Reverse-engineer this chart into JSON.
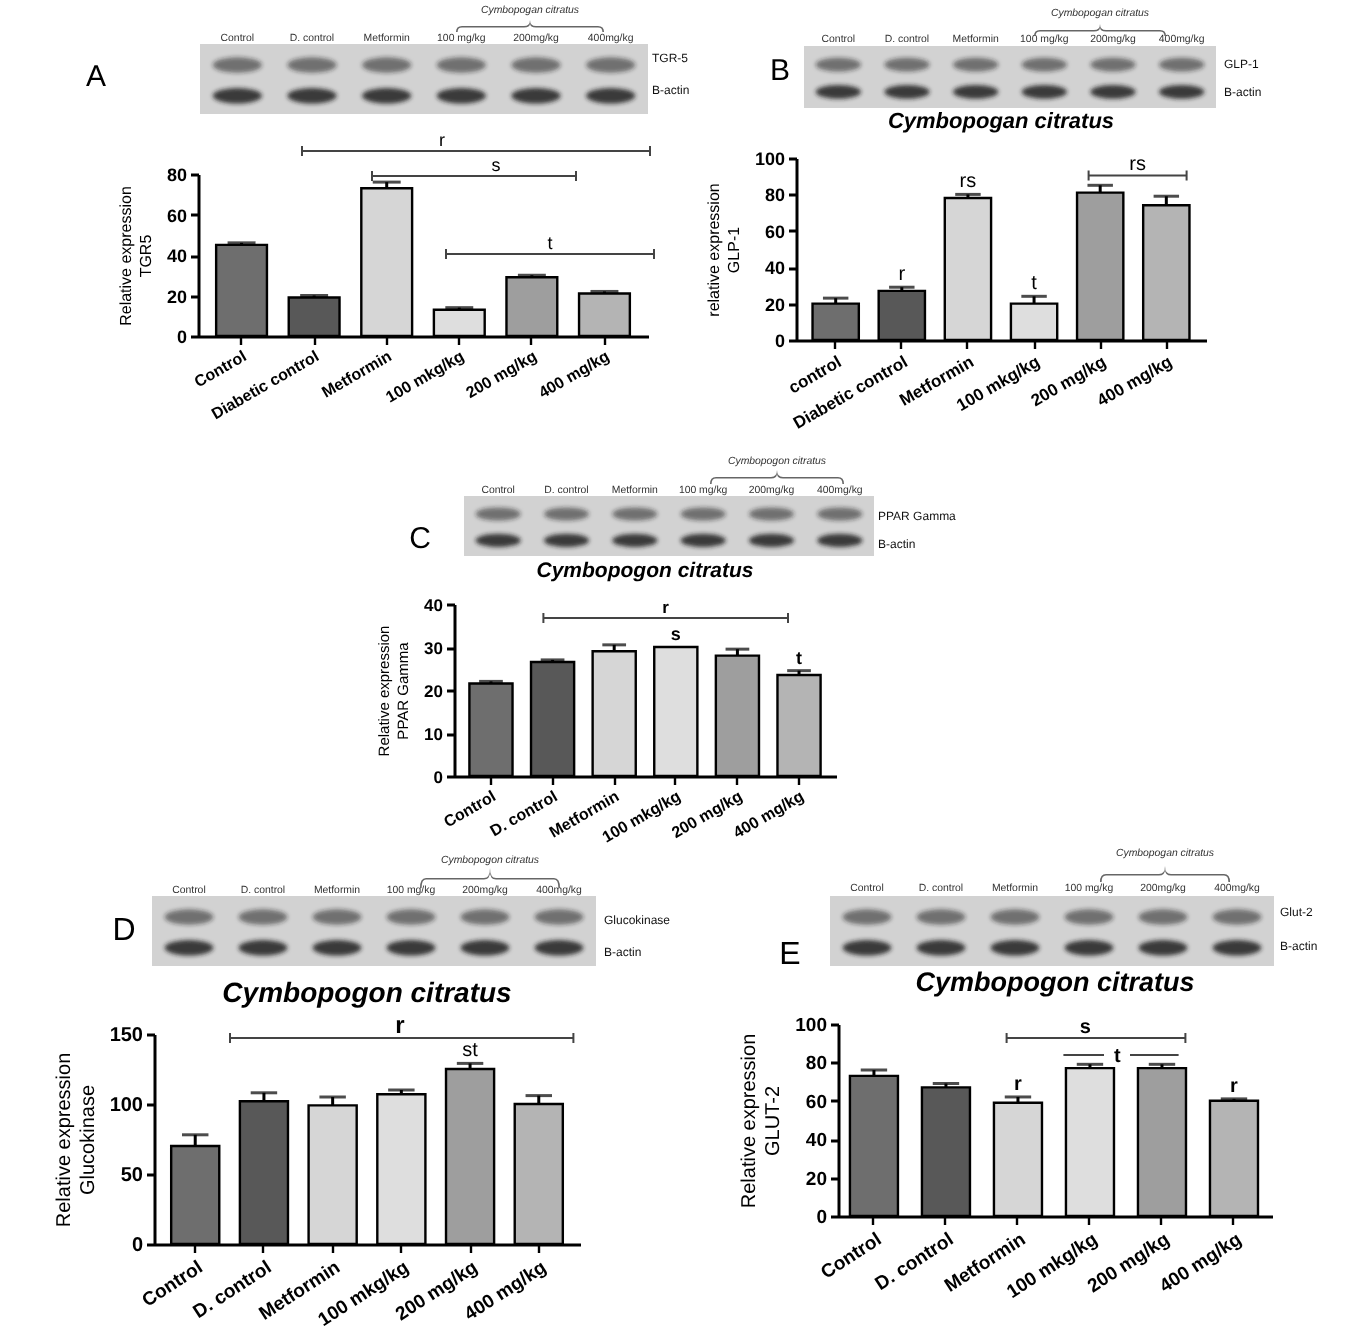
{
  "chart_data": [
    {
      "type": "bar",
      "ylabel": "Relative expression\nTGR5",
      "categories": [
        "Control",
        "Diabetic control",
        "Metformin",
        "100 mkg/kg",
        "200 mg/kg",
        "400 mg/kg"
      ],
      "values": [
        45,
        19,
        73,
        13,
        29,
        21
      ],
      "colors": [
        "#6e6e6e",
        "#585858",
        "#d6d6d6",
        "#dedede",
        "#9e9e9e",
        "#b4b4b4"
      ],
      "errors": [
        [
          45,
          46
        ],
        [
          19,
          20
        ],
        [
          73,
          76
        ],
        [
          13,
          14
        ],
        [
          29,
          30
        ],
        [
          21,
          22
        ]
      ],
      "ylim": [
        0,
        80
      ],
      "yticks": [
        0,
        20,
        40,
        60,
        80
      ],
      "annotations": [
        "A",
        "Control",
        "D. control",
        "Metformin",
        "100 mg/kg",
        "200mg/kg",
        "400mg/kg",
        "Cymbopogan citratus",
        "TGR-5",
        "B-actin",
        "r",
        "s",
        "t"
      ]
    },
    {
      "type": "bar",
      "title": "Cymbopogan citratus",
      "ylabel": "relative expression\nGLP-1",
      "categories": [
        "control",
        "Diabetic control",
        "Metformin",
        "100 mkg/kg",
        "200 mg/kg",
        "400 mg/kg"
      ],
      "values": [
        20,
        27,
        78,
        20,
        81,
        74
      ],
      "colors": [
        "#6e6e6e",
        "#585858",
        "#d6d6d6",
        "#dedede",
        "#9e9e9e",
        "#b4b4b4"
      ],
      "errors": [
        [
          20,
          23
        ],
        [
          27,
          29
        ],
        [
          78,
          80
        ],
        [
          20,
          24
        ],
        [
          81,
          85
        ],
        [
          74,
          79
        ]
      ],
      "ylim": [
        0,
        100
      ],
      "yticks": [
        0,
        20,
        40,
        60,
        80,
        100
      ],
      "annotations": [
        "B",
        "Control",
        "D. control",
        "Metformin",
        "100 mg/kg",
        "200mg/kg",
        "400mg/kg",
        "Cymbopogan citratus",
        "GLP-1",
        "B-actin",
        "rs",
        {
          "text": "r",
          "x": "Diabetic control",
          "y": 27
        },
        {
          "text": "rs",
          "x": "Metformin",
          "y": 78
        },
        {
          "text": "t",
          "x": "100 mkg/kg",
          "y": 20
        }
      ]
    },
    {
      "type": "bar",
      "title": "Cymbopogon citratus",
      "ylabel": "Relative expression\nPPAR Gamma",
      "categories": [
        "Control",
        "D. control",
        "Metformin",
        "100 mkg/kg",
        "200 mg/kg",
        "400 mg/kg"
      ],
      "values": [
        21.5,
        26.5,
        29,
        30,
        28,
        23.5
      ],
      "colors": [
        "#6e6e6e",
        "#585858",
        "#d6d6d6",
        "#dedede",
        "#9e9e9e",
        "#b4b4b4"
      ],
      "errors": [
        [
          21.5,
          22
        ],
        [
          26.5,
          27
        ],
        [
          29,
          30.5
        ],
        null,
        [
          28,
          29.5
        ],
        [
          23.5,
          24.5
        ]
      ],
      "ylim": [
        0,
        40
      ],
      "yticks": [
        0,
        10,
        20,
        30,
        40
      ],
      "annotations": [
        "C",
        "Control",
        "D. control",
        "Metformin",
        "100 mg/kg",
        "200mg/kg",
        "400mg/kg",
        "Cymbopogon citratus",
        "PPAR Gamma",
        "B-actin",
        "r",
        {
          "text": "s",
          "x": "100 mkg/kg",
          "y": 30
        },
        {
          "text": "t",
          "x": "400 mg/kg",
          "y": 23.5
        }
      ]
    },
    {
      "type": "bar",
      "title": "Cymbopogon citratus",
      "ylabel": "Relative expression\nGlucokinase",
      "categories": [
        "Control",
        "D. control",
        "Metformin",
        "100 mkg/kg",
        "200 mg/kg",
        "400 mg/kg"
      ],
      "values": [
        70,
        102,
        99,
        107,
        125,
        100
      ],
      "colors": [
        "#6e6e6e",
        "#585858",
        "#d6d6d6",
        "#dedede",
        "#9e9e9e",
        "#b4b4b4"
      ],
      "errors": [
        [
          70,
          78
        ],
        [
          102,
          108
        ],
        [
          99,
          105
        ],
        [
          107,
          110
        ],
        [
          125,
          129
        ],
        [
          100,
          106
        ]
      ],
      "ylim": [
        0,
        150
      ],
      "yticks": [
        0,
        50,
        100,
        150
      ],
      "annotations": [
        "D",
        "Control",
        "D. control",
        "Metformin",
        "100 mg/kg",
        "200mg/kg",
        "400mg/kg",
        "Cymbopogon citratus",
        "Glucokinase",
        "B-actin",
        "r",
        {
          "text": "st",
          "x": "200 mg/kg",
          "y": 125
        }
      ]
    },
    {
      "type": "bar",
      "title": "Cymbopogon citratus",
      "ylabel": "Relative expression\nGLUT-2",
      "categories": [
        "Control",
        "D. control",
        "Metformin",
        "100 mkg/kg",
        "200 mg/kg",
        "400 mg/kg"
      ],
      "values": [
        73,
        67,
        59,
        77,
        77,
        60
      ],
      "colors": [
        "#6e6e6e",
        "#585858",
        "#d6d6d6",
        "#dedede",
        "#9e9e9e",
        "#b4b4b4"
      ],
      "errors": [
        [
          73,
          76
        ],
        [
          67,
          69
        ],
        [
          59,
          62
        ],
        [
          77,
          79
        ],
        [
          77,
          79
        ],
        [
          60,
          61
        ]
      ],
      "ylim": [
        0,
        100
      ],
      "yticks": [
        0,
        20,
        40,
        60,
        80,
        100
      ],
      "annotations": [
        "E",
        "Control",
        "D. control",
        "Metformin",
        "100 mg/kg",
        "200mg/kg",
        "400mg/kg",
        "Cymbopogan citratus",
        "Glut-2",
        "B-actin",
        "s",
        "t",
        {
          "text": "r",
          "x": "Metformin",
          "y": 59
        },
        {
          "text": "r",
          "x": "400 mg/kg",
          "y": 60
        }
      ]
    }
  ]
}
